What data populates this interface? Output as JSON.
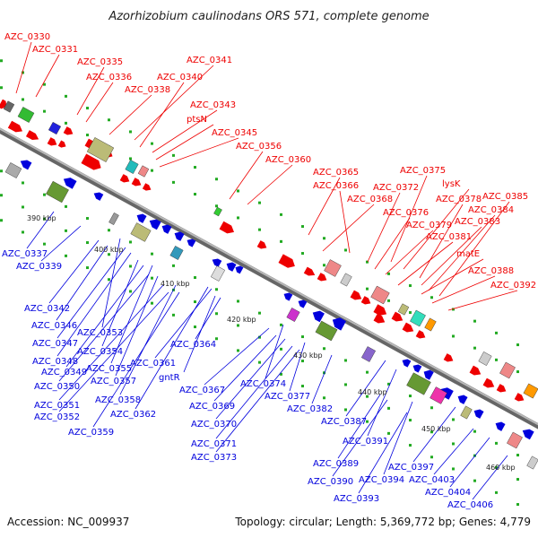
{
  "title": "Azorhizobium caulinodans ORS 571, complete genome",
  "footer": {
    "accession": "Accession: NC_009937",
    "summary": "Topology: circular; Length: 5,369,772 bp; Genes: 4,779"
  },
  "colors": {
    "forward": "#ee0000",
    "reverse": "#0000dd",
    "backbone": "#888888",
    "tick": "#22aa22"
  },
  "kbp_marks": [
    "390 kbp",
    "400 kbp",
    "410 kbp",
    "420 kbp",
    "430 kbp",
    "440 kbp",
    "450 kbp",
    "460 kbp"
  ],
  "labels_top": [
    "AZC_0330",
    "AZC_0331",
    "AZC_0335",
    "AZC_0336",
    "AZC_0341",
    "AZC_0340",
    "AZC_0338",
    "AZC_0343",
    "ptsN",
    "AZC_0345",
    "AZC_0356",
    "AZC_0360",
    "AZC_0365",
    "AZC_0375",
    "AZC_0366",
    "AZC_0372",
    "lysK",
    "AZC_0368",
    "AZC_0378",
    "AZC_0385",
    "AZC_0376",
    "AZC_0384",
    "AZC_0379",
    "AZC_0383",
    "AZC_0381",
    "matE",
    "AZC_0388",
    "AZC_0392"
  ],
  "labels_bottom": [
    "AZC_0337",
    "AZC_0339",
    "AZC_0342",
    "AZC_0346",
    "AZC_0347",
    "AZC_0353",
    "AZC_0348",
    "AZC_0354",
    "AZC_0349",
    "AZC_0355",
    "AZC_0361",
    "AZC_0364",
    "AZC_0350",
    "AZC_0357",
    "gntR",
    "AZC_0351",
    "AZC_0358",
    "AZC_0352",
    "AZC_0362",
    "AZC_0359",
    "AZC_0367",
    "AZC_0374",
    "AZC_0369",
    "AZC_0377",
    "AZC_0382",
    "AZC_0370",
    "AZC_0387",
    "AZC_0371",
    "AZC_0391",
    "AZC_0373",
    "AZC_0389",
    "AZC_0397",
    "AZC_0390",
    "AZC_0394",
    "AZC_0403",
    "AZC_0404",
    "AZC_0393",
    "AZC_0406"
  ]
}
